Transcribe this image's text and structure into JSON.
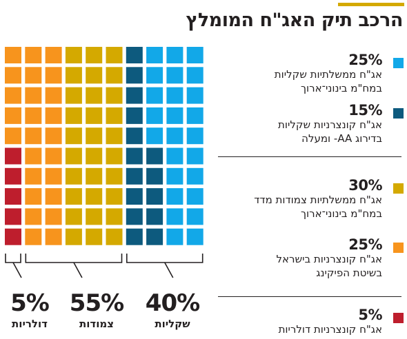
{
  "title": "הרכב תיק האג\"ח המומלץ",
  "colors": {
    "title_bar": "#d4a900",
    "text": "#231f20",
    "bracket": "#231f20"
  },
  "chart_data": {
    "type": "waffle",
    "grid": {
      "rows": 10,
      "cols": 10
    },
    "series": [
      {
        "pct": "25%",
        "value": 25,
        "desc": [
          "אג\"ח ממשלתיות שקליות",
          "במח\"מ בינוני־ארוך"
        ],
        "color": "#12a8e8"
      },
      {
        "pct": "15%",
        "value": 15,
        "desc": [
          "אג\"ח קונצרניות שקליות",
          "בדירוג AA- ומעלה"
        ],
        "color": "#0d5a7e"
      },
      {
        "pct": "30%",
        "value": 30,
        "desc": [
          "אג\"ח ממשלתיות צמודות מדד",
          "במח\"מ בינוני־ארוך"
        ],
        "color": "#d4a900"
      },
      {
        "pct": "25%",
        "value": 25,
        "desc": [
          "אג\"ח קונצרניות בישראל",
          "בשיטת הפיקינג"
        ],
        "color": "#f7941d"
      },
      {
        "pct": "5%",
        "value": 5,
        "desc": [
          "אג\"ח קונצרניות דולריות"
        ],
        "color": "#be1e2d"
      }
    ],
    "groups": [
      {
        "total": "40%",
        "label": "שקליות"
      },
      {
        "total": "55%",
        "label": "צמודות"
      },
      {
        "total": "5%",
        "label": "דולריות"
      }
    ]
  }
}
